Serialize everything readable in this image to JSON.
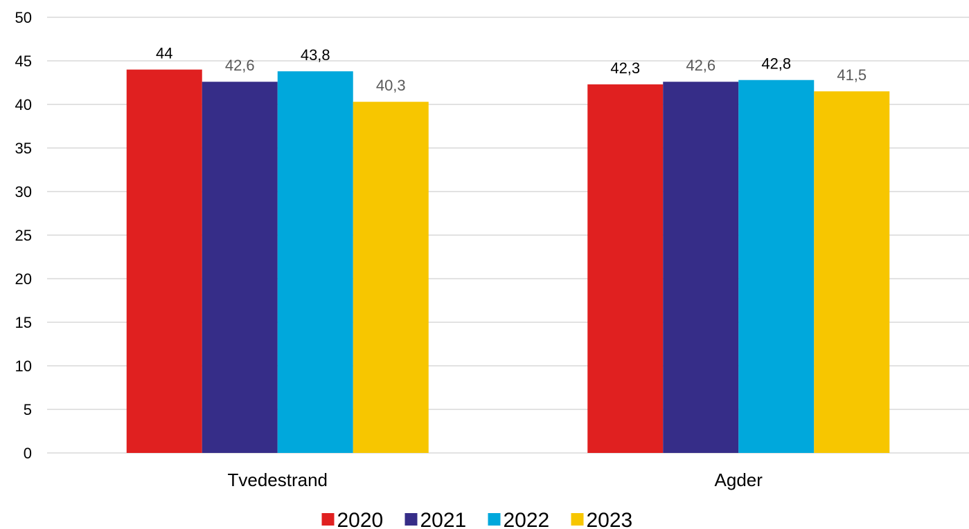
{
  "chart_data": {
    "type": "bar",
    "categories": [
      "Tvedestrand",
      "Agder"
    ],
    "series": [
      {
        "name": "2020",
        "color": "#E02020",
        "values": [
          44,
          42.3
        ],
        "labels": [
          "44",
          "42,3"
        ]
      },
      {
        "name": "2021",
        "color": "#362D88",
        "values": [
          42.6,
          42.6
        ],
        "labels": [
          "42,6",
          "42,6"
        ]
      },
      {
        "name": "2022",
        "color": "#00A8DC",
        "values": [
          43.8,
          42.8
        ],
        "labels": [
          "43,8",
          "42,8"
        ]
      },
      {
        "name": "2023",
        "color": "#F7C600",
        "values": [
          40.3,
          41.5
        ],
        "labels": [
          "40,3",
          "41,5"
        ]
      }
    ],
    "label_colors": [
      [
        "#000000",
        "#000000"
      ],
      [
        "#595959",
        "#595959"
      ],
      [
        "#000000",
        "#000000"
      ],
      [
        "#595959",
        "#595959"
      ]
    ],
    "y_ticks": [
      "0",
      "5",
      "10",
      "15",
      "20",
      "25",
      "30",
      "35",
      "40",
      "45",
      "50"
    ],
    "ylim": [
      0,
      50
    ],
    "grid": true,
    "legend_position": "bottom",
    "colors": {
      "gridline": "#D9D9D9",
      "axis": "#D9D9D9"
    }
  }
}
